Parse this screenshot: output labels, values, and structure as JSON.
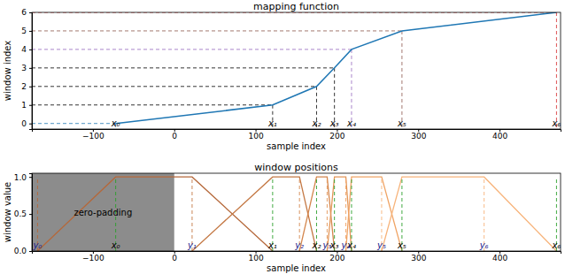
{
  "chart_data": [
    {
      "type": "line",
      "title": "mapping function",
      "x_label": "sample index",
      "y_label": "window index",
      "x": [
        -72,
        121,
        175,
        197,
        218,
        280,
        470
      ],
      "values": [
        0,
        1,
        2,
        3,
        4,
        5,
        6
      ],
      "point_labels": [
        "x₀",
        "x₁",
        "x₂",
        "x₃",
        "x₄",
        "x₅",
        "x₆"
      ],
      "color": "#1f77b4",
      "colors": [
        "#1f77b4",
        "#000000",
        "#000000",
        "#000000",
        "#9467bd",
        "#8c564b",
        "#d62728"
      ],
      "line_style": "solid",
      "xlim": [
        -175,
        475
      ],
      "ylim": [
        -0.3,
        6
      ],
      "xticks": [
        {
          "value": -100,
          "label": "−100"
        },
        0,
        100,
        200,
        300,
        400
      ],
      "yticks": [
        0,
        1,
        2,
        3,
        4,
        5,
        6
      ]
    },
    {
      "type": "line",
      "title": "window positions",
      "x_label": "sample index",
      "y_label": "window value",
      "breakpoints_x": [
        -72,
        121,
        175,
        197,
        218,
        280,
        470
      ],
      "breakpoints_y": [
        -168,
        22,
        154,
        188,
        211,
        255,
        381
      ],
      "x_labels": [
        "x₀",
        "x₁",
        "x₂",
        "x₃",
        "x₄",
        "x₅",
        "x₆"
      ],
      "y_labels": [
        "y₀",
        "y₁",
        "y₂",
        "y₃",
        "y₄",
        "y₅",
        "y₆"
      ],
      "zero_padding": {
        "label": "zero-padding",
        "from": -175,
        "to": 0,
        "color": "#8c8c8c"
      },
      "series": [
        {
          "color": "#b5683a",
          "x": [
            -168,
            -72,
            22,
            121
          ],
          "values": [
            0,
            1,
            1,
            0
          ]
        },
        {
          "color": "#c47844",
          "x": [
            22,
            121,
            154,
            175
          ],
          "values": [
            0,
            1,
            1,
            0
          ]
        },
        {
          "color": "#d4864d",
          "x": [
            154,
            175,
            188,
            197
          ],
          "values": [
            0,
            1,
            1,
            0
          ]
        },
        {
          "color": "#e39658",
          "x": [
            188,
            197,
            211,
            218
          ],
          "values": [
            0,
            1,
            1,
            0
          ]
        },
        {
          "color": "#f0a465",
          "x": [
            211,
            218,
            255,
            280
          ],
          "values": [
            0,
            1,
            1,
            0
          ]
        },
        {
          "color": "#f7b37a",
          "x": [
            255,
            280,
            381,
            470
          ],
          "values": [
            0,
            1,
            1,
            0
          ]
        }
      ],
      "x_guide_color": "#2ca02c",
      "line_style": "dashed",
      "xlim": [
        -175,
        475
      ],
      "ylim": [
        0,
        1.05
      ],
      "xticks": [
        {
          "value": -100,
          "label": "−100"
        },
        0,
        100,
        200,
        300,
        400
      ],
      "yticks": [
        {
          "value": 0,
          "label": "0.0"
        },
        {
          "value": 0.5,
          "label": "0.5"
        },
        {
          "value": 1,
          "label": "1.0"
        }
      ]
    }
  ]
}
